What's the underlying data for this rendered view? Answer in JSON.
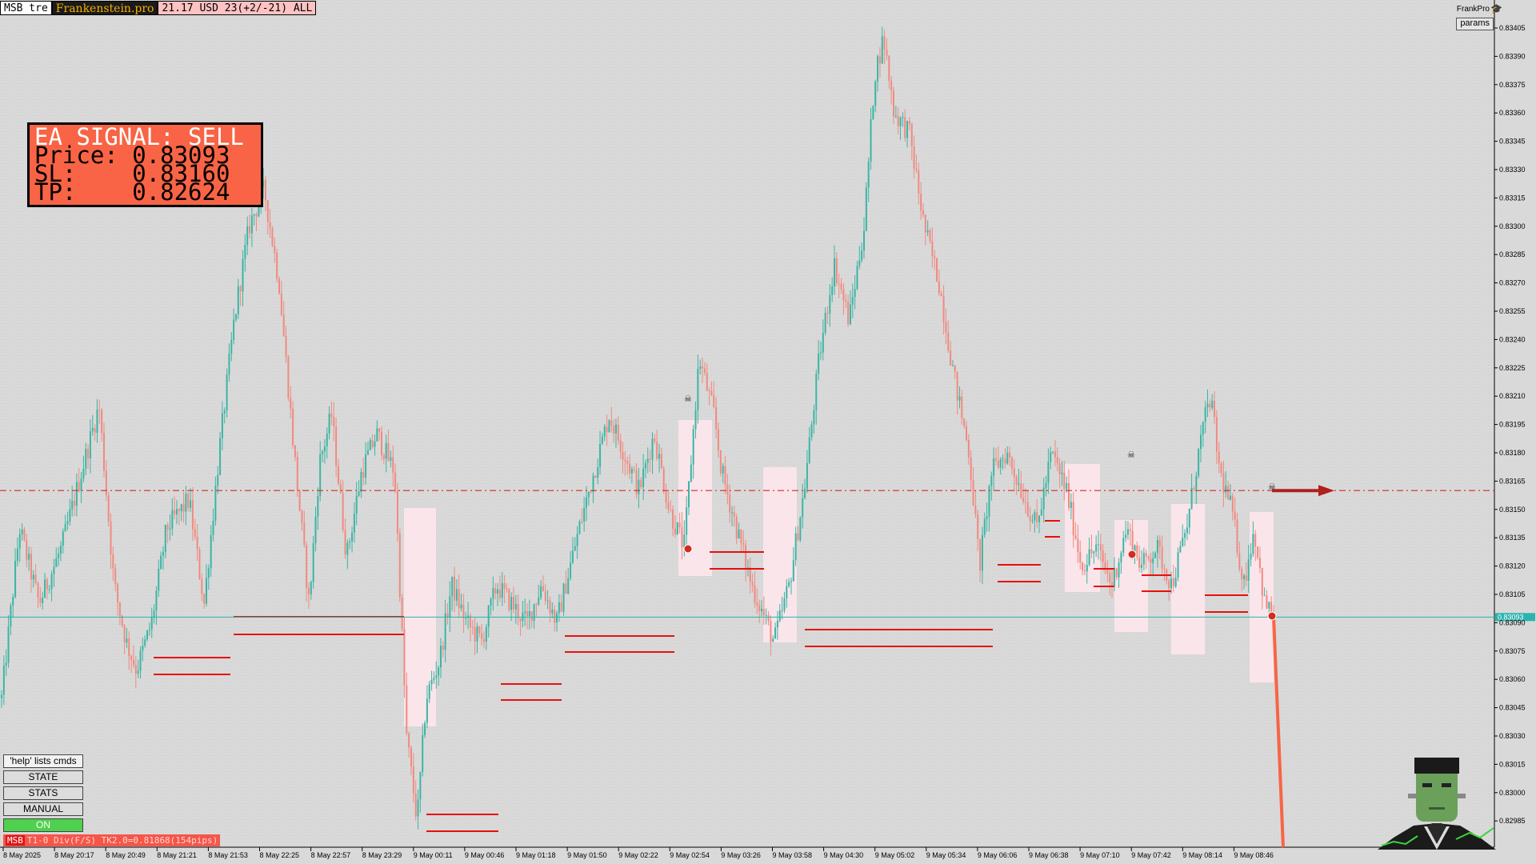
{
  "topbar": {
    "symbol": "MSB tre",
    "brand": "Frankenstein.pro",
    "account": "21.17 USD 23(+2/-21) ALL"
  },
  "signal": {
    "line1": "EA SIGNAL: SELL",
    "line2": "Price: 0.83093",
    "line3": "SL:    0.83160",
    "line4": "TP:    0.82624"
  },
  "header_right": {
    "brand": "FrankPro",
    "params_label": "params",
    "hat_icon": "graduation-cap-icon"
  },
  "commands": {
    "help": "'help' lists cmds",
    "state": "STATE",
    "stats": "STATS",
    "manual": "MANUAL",
    "on": "ON"
  },
  "status": {
    "tag": "MSB",
    "text": "T1-0  Div(F/S) TK2.0=0.81868(154pips)"
  },
  "colors": {
    "background": "#d9d9d9",
    "bull": "#3bb5a3",
    "bear": "#f08a80",
    "level_line": "#e8100a",
    "price_line": "#2bb3ad",
    "sl_line": "#d42a20",
    "signal_box": "#f86445",
    "zone": "#fde6ec",
    "on_button": "#4fd04f"
  },
  "chart_data": {
    "type": "candlestick",
    "y_range": [
      0.82975,
      0.8341
    ],
    "y_ticks": [
      "0.83405",
      "0.83390",
      "0.83375",
      "0.83360",
      "0.83345",
      "0.83330",
      "0.83315",
      "0.83300",
      "0.83285",
      "0.83270",
      "0.83255",
      "0.83240",
      "0.83225",
      "0.83210",
      "0.83195",
      "0.83180",
      "0.83165",
      "0.83150",
      "0.83135",
      "0.83120",
      "0.83105",
      "0.83090",
      "0.83075",
      "0.83060",
      "0.83045",
      "0.83030",
      "0.83015",
      "0.83000",
      "0.82985"
    ],
    "x_ticks": [
      "8 May 2025",
      "8 May 20:17",
      "8 May 20:49",
      "8 May 21:21",
      "8 May 21:53",
      "8 May 22:25",
      "8 May 22:57",
      "8 May 23:29",
      "9 May 00:11",
      "9 May 00:46",
      "9 May 01:18",
      "9 May 01:50",
      "9 May 02:22",
      "9 May 02:54",
      "9 May 03:26",
      "9 May 03:58",
      "9 May 04:30",
      "9 May 05:02",
      "9 May 05:34",
      "9 May 06:06",
      "9 May 06:38",
      "9 May 07:10",
      "9 May 07:42",
      "9 May 08:14",
      "9 May 08:46"
    ],
    "current_price": "0.83093",
    "sl_price": 0.8316,
    "price_path": [
      [
        0.0,
        0.8305
      ],
      [
        0.012,
        0.8314
      ],
      [
        0.025,
        0.831
      ],
      [
        0.04,
        0.8313
      ],
      [
        0.055,
        0.83175
      ],
      [
        0.065,
        0.83205
      ],
      [
        0.075,
        0.8311
      ],
      [
        0.083,
        0.8308
      ],
      [
        0.09,
        0.83065
      ],
      [
        0.1,
        0.8309
      ],
      [
        0.11,
        0.8314
      ],
      [
        0.125,
        0.83155
      ],
      [
        0.135,
        0.831
      ],
      [
        0.145,
        0.8318
      ],
      [
        0.155,
        0.8325
      ],
      [
        0.165,
        0.833
      ],
      [
        0.175,
        0.8332
      ],
      [
        0.185,
        0.8327
      ],
      [
        0.195,
        0.8318
      ],
      [
        0.205,
        0.831
      ],
      [
        0.212,
        0.83175
      ],
      [
        0.22,
        0.832
      ],
      [
        0.23,
        0.83125
      ],
      [
        0.24,
        0.8317
      ],
      [
        0.25,
        0.8319
      ],
      [
        0.262,
        0.8317
      ],
      [
        0.27,
        0.8303
      ],
      [
        0.277,
        0.82985
      ],
      [
        0.283,
        0.8305
      ],
      [
        0.292,
        0.8307
      ],
      [
        0.3,
        0.8311
      ],
      [
        0.31,
        0.8309
      ],
      [
        0.32,
        0.8308
      ],
      [
        0.33,
        0.8311
      ],
      [
        0.34,
        0.831
      ],
      [
        0.35,
        0.8309
      ],
      [
        0.36,
        0.8311
      ],
      [
        0.37,
        0.8309
      ],
      [
        0.385,
        0.8314
      ],
      [
        0.395,
        0.8317
      ],
      [
        0.405,
        0.832
      ],
      [
        0.415,
        0.8318
      ],
      [
        0.425,
        0.8316
      ],
      [
        0.435,
        0.8319
      ],
      [
        0.445,
        0.8315
      ],
      [
        0.455,
        0.8313
      ],
      [
        0.465,
        0.8323
      ],
      [
        0.475,
        0.832
      ],
      [
        0.48,
        0.8317
      ],
      [
        0.49,
        0.8314
      ],
      [
        0.5,
        0.8311
      ],
      [
        0.51,
        0.8309
      ],
      [
        0.515,
        0.8308
      ],
      [
        0.525,
        0.8311
      ],
      [
        0.535,
        0.8316
      ],
      [
        0.545,
        0.8323
      ],
      [
        0.555,
        0.8328
      ],
      [
        0.565,
        0.8325
      ],
      [
        0.575,
        0.833
      ],
      [
        0.582,
        0.8338
      ],
      [
        0.588,
        0.834
      ],
      [
        0.595,
        0.8336
      ],
      [
        0.605,
        0.8335
      ],
      [
        0.615,
        0.833
      ],
      [
        0.625,
        0.8327
      ],
      [
        0.635,
        0.8322
      ],
      [
        0.645,
        0.8318
      ],
      [
        0.652,
        0.8312
      ],
      [
        0.66,
        0.8317
      ],
      [
        0.67,
        0.8318
      ],
      [
        0.68,
        0.8316
      ],
      [
        0.69,
        0.8314
      ],
      [
        0.7,
        0.8318
      ],
      [
        0.71,
        0.8316
      ],
      [
        0.72,
        0.8312
      ],
      [
        0.73,
        0.8313
      ],
      [
        0.74,
        0.8311
      ],
      [
        0.75,
        0.8314
      ],
      [
        0.76,
        0.8312
      ],
      [
        0.77,
        0.8313
      ],
      [
        0.78,
        0.8311
      ],
      [
        0.79,
        0.8314
      ],
      [
        0.8,
        0.8319
      ],
      [
        0.806,
        0.8321
      ],
      [
        0.812,
        0.8317
      ],
      [
        0.82,
        0.8315
      ],
      [
        0.828,
        0.8311
      ],
      [
        0.835,
        0.8314
      ],
      [
        0.842,
        0.831
      ],
      [
        0.848,
        0.83093
      ]
    ]
  }
}
